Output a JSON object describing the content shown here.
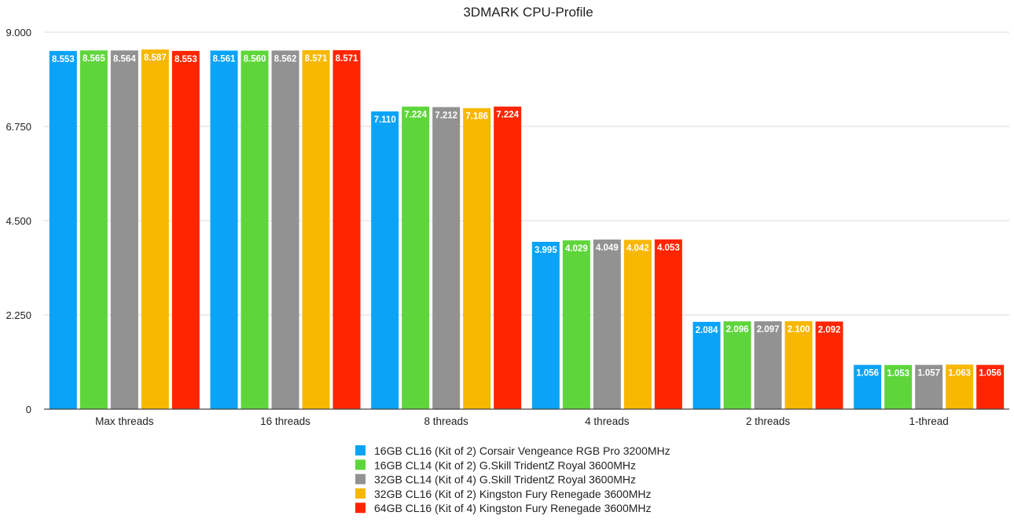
{
  "chart_data": {
    "type": "bar",
    "title": "3DMARK CPU-Profile",
    "xlabel": "",
    "ylabel": "",
    "ylim": [
      0,
      9.0
    ],
    "yticks": [
      "0",
      "2.250",
      "4.500",
      "6.750",
      "9.000"
    ],
    "grid": true,
    "legend_position": "bottom",
    "categories": [
      "Max threads",
      "16 threads",
      "8 threads",
      "4 threads",
      "2 threads",
      "1-thread"
    ],
    "series": [
      {
        "name": "16GB CL16 (Kit of 2) Corsair Vengeance RGB Pro 3200MHz",
        "color": "#0aa3f8",
        "values": [
          8.553,
          8.561,
          7.11,
          3.995,
          2.084,
          1.056
        ],
        "labels": [
          "8.553",
          "8.561",
          "7.110",
          "3.995",
          "2.084",
          "1.056"
        ]
      },
      {
        "name": "16GB CL14 (Kit of 2) G.Skill TridentZ Royal 3600MHz",
        "color": "#5ed63b",
        "values": [
          8.565,
          8.56,
          7.224,
          4.029,
          2.096,
          1.053
        ],
        "labels": [
          "8.565",
          "8.560",
          "7.224",
          "4.029",
          "2.096",
          "1.053"
        ]
      },
      {
        "name": "32GB CL14 (Kit of 4) G.Skill TridentZ Royal 3600MHz",
        "color": "#929292",
        "values": [
          8.564,
          8.562,
          7.212,
          4.049,
          2.097,
          1.057
        ],
        "labels": [
          "8.564",
          "8.562",
          "7.212",
          "4.049",
          "2.097",
          "1.057"
        ]
      },
      {
        "name": "32GB CL16 (Kit of 2) Kingston Fury Renegade 3600MHz",
        "color": "#f8b700",
        "values": [
          8.587,
          8.571,
          7.186,
          4.042,
          2.1,
          1.063
        ],
        "labels": [
          "8.587",
          "8.571",
          "7.186",
          "4.042",
          "2.100",
          "1.063"
        ]
      },
      {
        "name": "64GB CL16 (Kit of 4) Kingston Fury Renegade 3600MHz",
        "color": "#fe2500",
        "values": [
          8.553,
          8.571,
          7.224,
          4.053,
          2.092,
          1.056
        ],
        "labels": [
          "8.553",
          "8.571",
          "7.224",
          "4.053",
          "2.092",
          "1.056"
        ]
      }
    ]
  }
}
